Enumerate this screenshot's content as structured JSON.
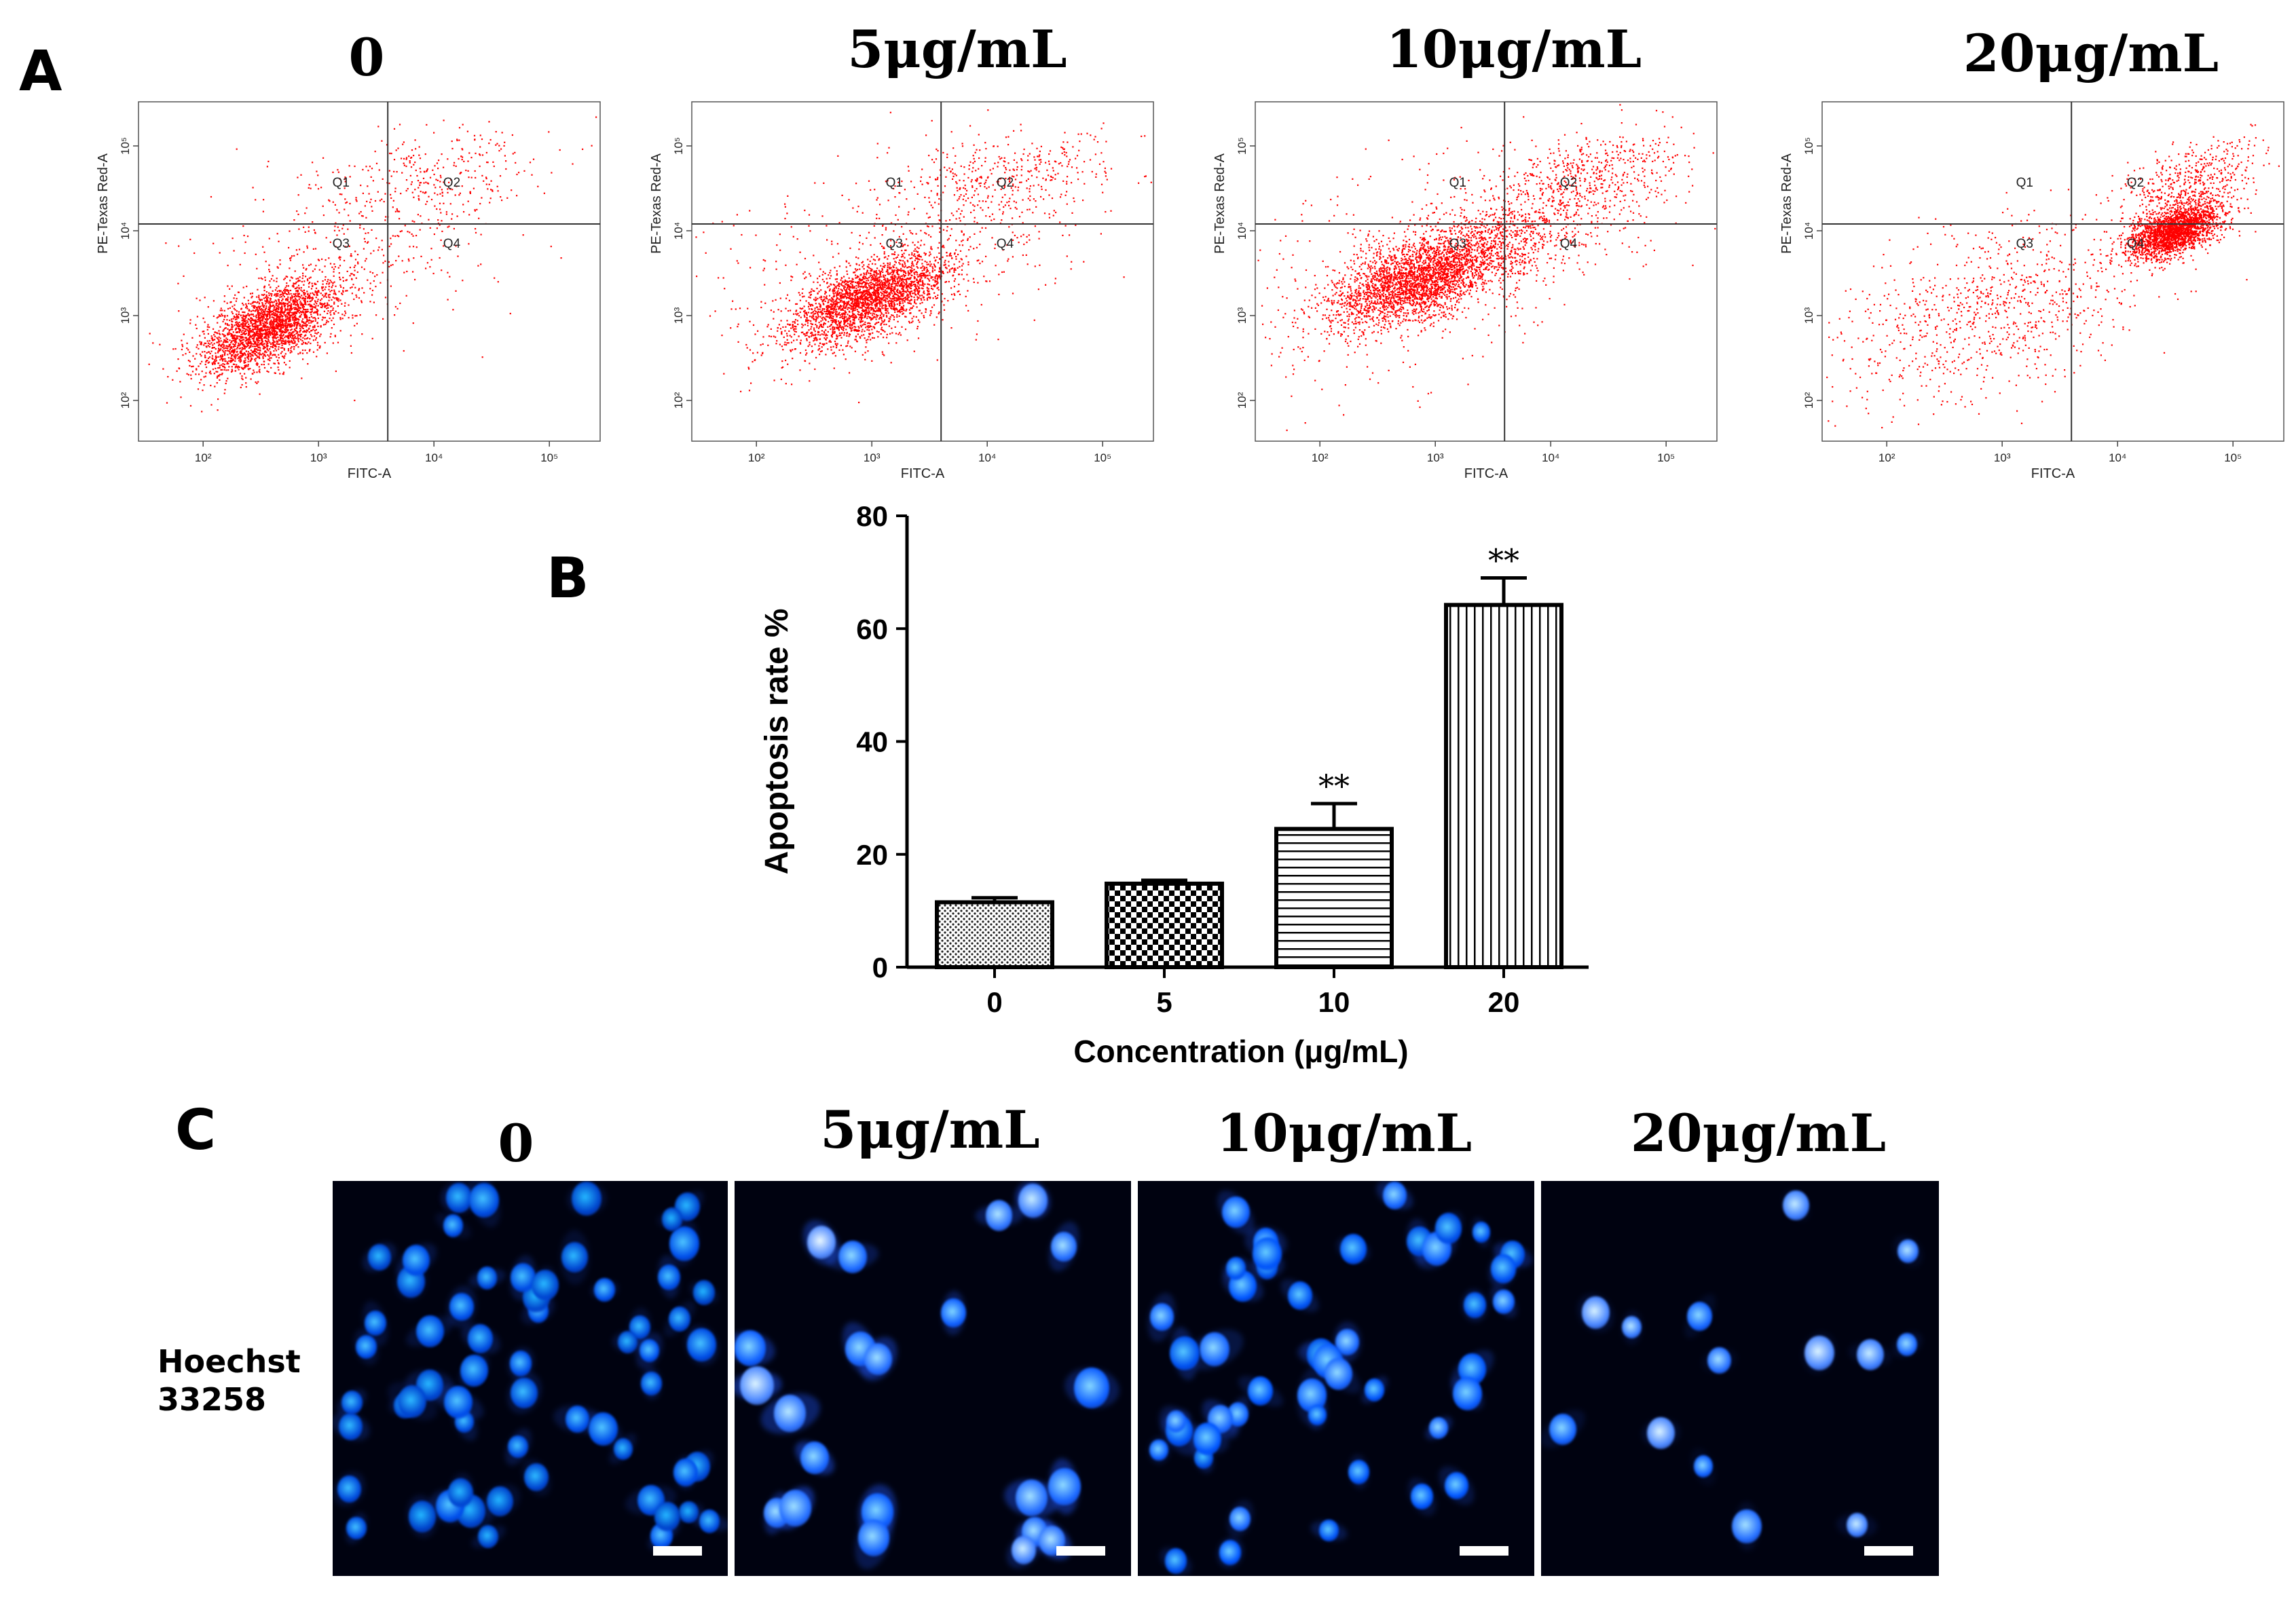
{
  "panel_labels": {
    "a": "A",
    "b": "B",
    "c": "C"
  },
  "conditions": [
    "0",
    "5μg/mL",
    "10μg/mL",
    "20μg/mL"
  ],
  "flow": {
    "x_axis_label": "FITC-A",
    "y_axis_label": "PE-Texas Red-A",
    "x_ticks": [
      "10²",
      "10³",
      "10⁴",
      "10⁵"
    ],
    "y_ticks": [
      "10²",
      "10³",
      "10⁴",
      "10⁵"
    ],
    "quadrants": [
      "Q1",
      "Q2",
      "Q3",
      "Q4"
    ],
    "dot_color": "#ff0000"
  },
  "hoechst": {
    "line1": "Hoechst",
    "line2": "33258"
  },
  "micro_color": "#1e6bff",
  "chart_data": {
    "type": "bar",
    "categories": [
      "0",
      "5",
      "10",
      "20"
    ],
    "values": [
      11.5,
      14.8,
      24.5,
      64.2
    ],
    "errors": [
      0.8,
      0.6,
      4.5,
      4.8
    ],
    "significance": [
      "",
      "",
      "**",
      "**"
    ],
    "patterns": [
      "dots",
      "checker",
      "hlines",
      "vlines"
    ],
    "title": "",
    "xlabel": "Concentration (μg/mL)",
    "ylabel": "Apoptosis rate %",
    "ylim": [
      0,
      80
    ],
    "yticks": [
      0,
      20,
      40,
      60,
      80
    ]
  }
}
